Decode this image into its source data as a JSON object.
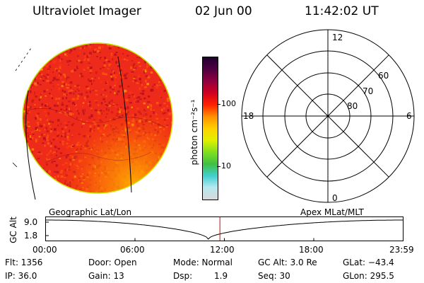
{
  "header": {
    "title": "Ultraviolet Imager",
    "date": "02 Jun 00",
    "time": "11:42:02 UT"
  },
  "colorbar": {
    "unit_label": "photon cm⁻²s⁻¹",
    "tick_labels": [
      "100",
      "10"
    ],
    "colors": [
      "#d8d8d8",
      "#b8e8f0",
      "#40d0d0",
      "#40c040",
      "#80e020",
      "#e0f000",
      "#ffd000",
      "#ff9000",
      "#ff2000",
      "#d00020",
      "#900040",
      "#500040",
      "#200030"
    ]
  },
  "polar_plot": {
    "mlt_labels": {
      "top": "12",
      "bottom": "0",
      "left": "18",
      "right": "6"
    },
    "lat_labels": [
      "60",
      "70",
      "80"
    ]
  },
  "timeline": {
    "left_caption": "Geographic Lat/Lon",
    "right_caption": "Apex MLat/MLT",
    "y_axis_label": "GC Alt",
    "y_ticks": [
      "9.0",
      "1.8"
    ],
    "x_ticks": [
      "00:00",
      "06:00",
      "12:00",
      "18:00",
      "23:59"
    ],
    "marker_time_fraction": 0.4875
  },
  "info": {
    "row1": [
      "Flt: 1356",
      "Door: Open",
      "Mode: Normal",
      "GC Alt: 3.0 Re",
      "GLat: −43.4"
    ],
    "row2": [
      "IP: 36.0",
      "Gain: 13",
      "Dsp:",
      "1.9",
      "Seq: 30",
      "GLon: 295.5"
    ]
  },
  "image_colors": {
    "base": "#ee2a1a",
    "dark": "#b81020",
    "light": "#ff5a10",
    "glow": "#ffa000",
    "limb": "#c8e000"
  }
}
